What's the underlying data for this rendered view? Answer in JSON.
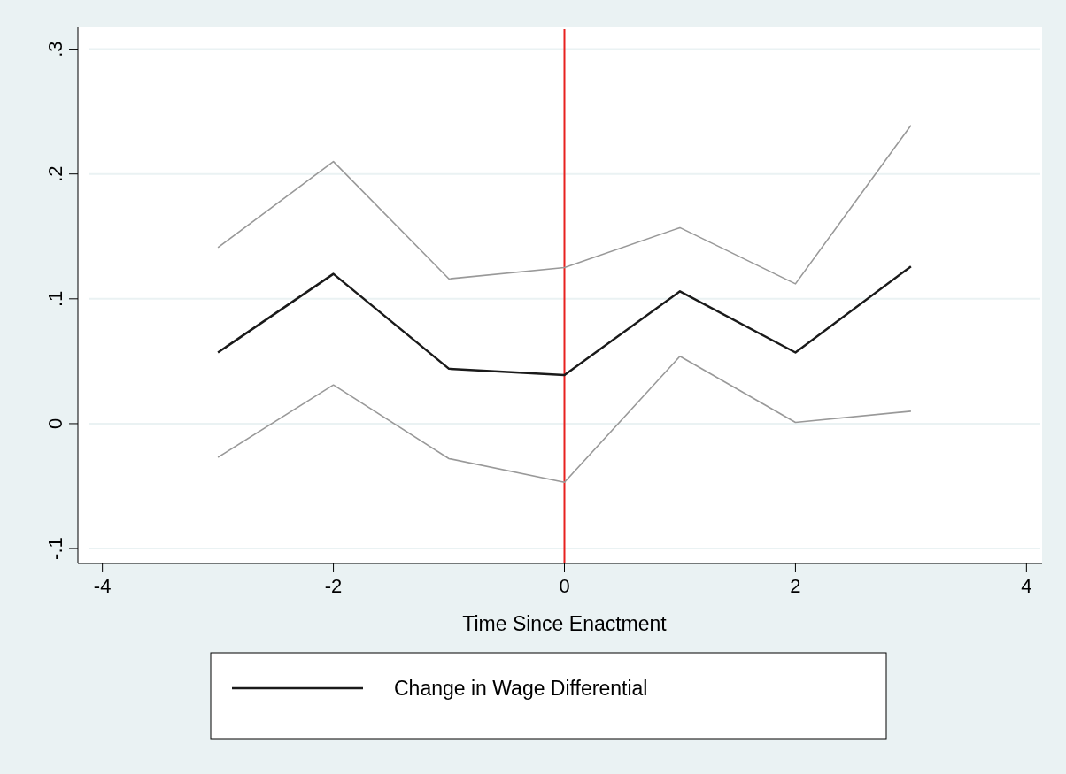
{
  "chart_data": {
    "type": "line",
    "xlabel": "Time Since Enactment",
    "xlim": [
      -4.12,
      4.12
    ],
    "xticks": [
      -4,
      -2,
      0,
      2,
      4
    ],
    "ylim": [
      -0.112,
      0.316
    ],
    "yticks": [
      {
        "value": -0.1,
        "label": "-.1"
      },
      {
        "value": 0,
        "label": "0"
      },
      {
        "value": 0.1,
        "label": ".1"
      },
      {
        "value": 0.2,
        "label": ".2"
      },
      {
        "value": 0.3,
        "label": ".3"
      }
    ],
    "grid": "y",
    "legend": "bottom",
    "line_style": "solid",
    "marker": "none",
    "x": [
      -3,
      -2,
      -1,
      0,
      1,
      2,
      3
    ],
    "series": [
      {
        "name": "Change in Wage Differential",
        "color": "#1a1a1a",
        "values": [
          0.057,
          0.12,
          0.044,
          0.039,
          0.106,
          0.057,
          0.126
        ]
      },
      {
        "color": "#999999",
        "values": [
          0.141,
          0.21,
          0.116,
          0.125,
          0.157,
          0.112,
          0.239
        ]
      },
      {
        "color": "#999999",
        "values": [
          -0.027,
          0.031,
          -0.028,
          -0.047,
          0.054,
          0.001,
          0.01
        ]
      }
    ],
    "ref_lines": [
      {
        "axis": "x",
        "value": 0,
        "color": "#e8211f"
      }
    ]
  }
}
